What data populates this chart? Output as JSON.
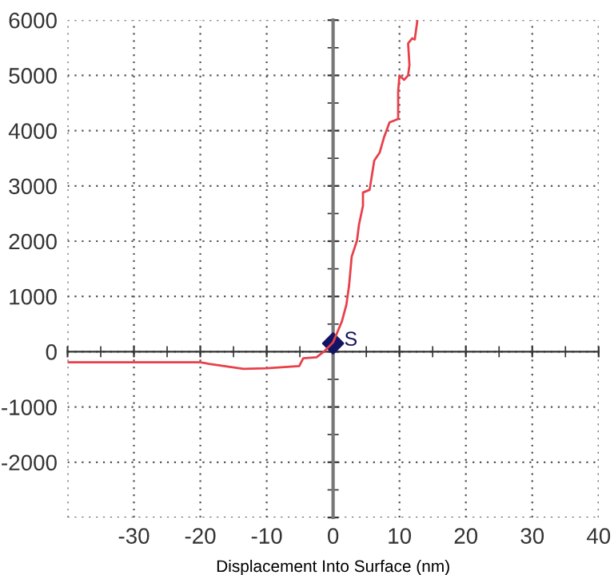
{
  "chart_data": {
    "type": "line",
    "xlabel": "Displacement Into Surface (nm)",
    "xlim": [
      -40,
      40
    ],
    "ylim": [
      -3000,
      6000
    ],
    "xticks": [
      {
        "value": -40,
        "label": null
      },
      -30,
      -20,
      -10,
      0,
      10,
      20,
      30,
      40
    ],
    "yticks": [
      {
        "value": -3000,
        "label": null
      },
      -2000,
      -1000,
      0,
      1000,
      2000,
      3000,
      4000,
      5000,
      6000
    ],
    "grid": true,
    "line_style": "solid",
    "marker": "none",
    "series": [
      {
        "color": "#e8404a",
        "x": [
          -40,
          -20,
          -18.7,
          -13.5,
          -10,
          -5.1,
          -4.5,
          -2.5,
          -1.4,
          0,
          1.3,
          2,
          2.4,
          2.8,
          3.6,
          3.9,
          4.5,
          4.5,
          5.5,
          6.2,
          7.0,
          7.7,
          8.5,
          9.8,
          9.8,
          10,
          10.7,
          11.3,
          11.5,
          11.3,
          11.9,
          12.3,
          12.7
        ],
        "values": [
          -190,
          -190,
          -220,
          -310,
          -300,
          -260,
          -120,
          -100,
          0,
          170,
          540,
          850,
          1190,
          1720,
          2010,
          2300,
          2640,
          2880,
          2930,
          3460,
          3600,
          3890,
          4150,
          4210,
          4710,
          5000,
          4920,
          5000,
          5190,
          5580,
          5670,
          5650,
          6000
        ]
      },
      {
        "type": "scatter",
        "name": "S",
        "color": "#141464",
        "marker": "diamond",
        "x": [
          0
        ],
        "values": [
          150
        ]
      }
    ]
  }
}
